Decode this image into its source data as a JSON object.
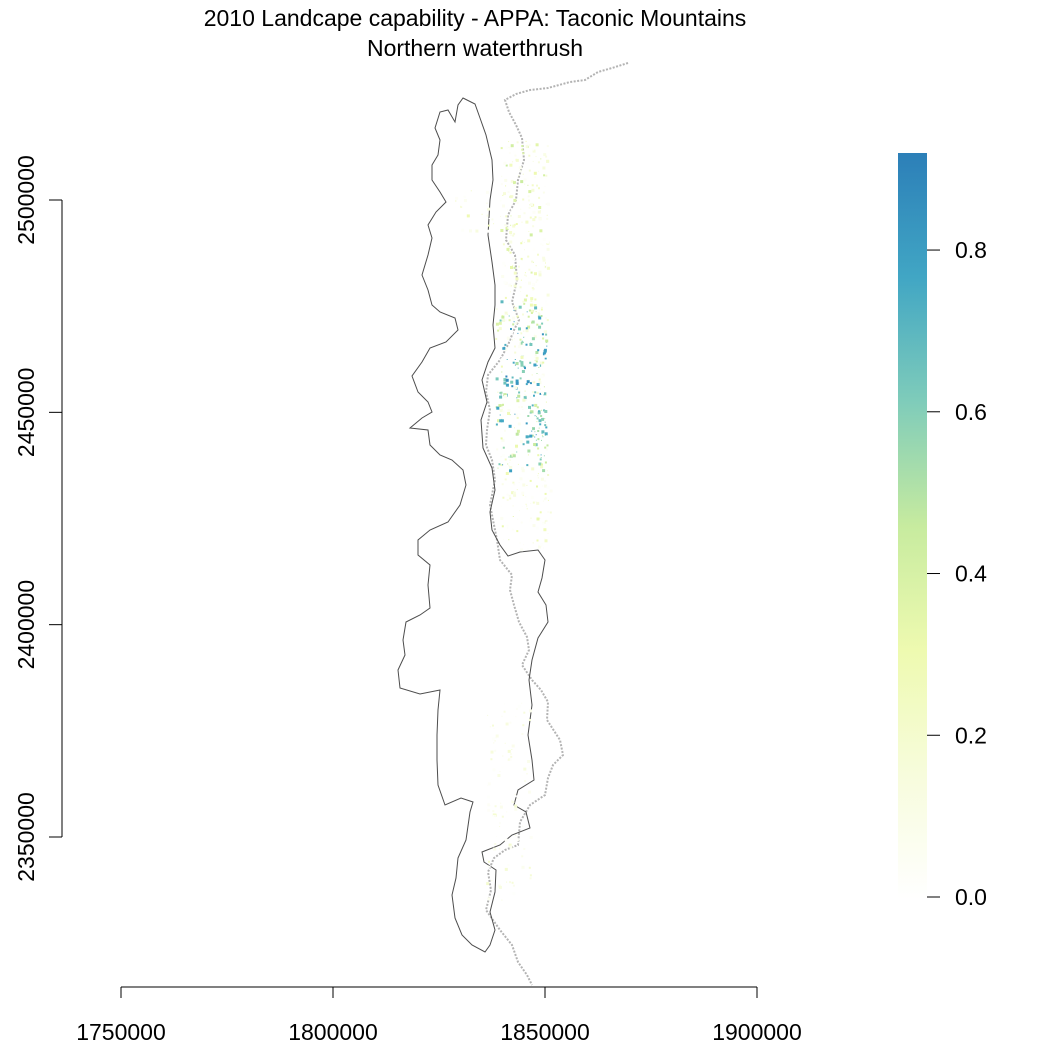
{
  "title": "2010 Landcape capability - APPA: Taconic Mountains",
  "subtitle": "Northern waterthrush",
  "chart_data": {
    "type": "heatmap",
    "x_ticks": [
      1750000,
      1800000,
      1850000,
      1900000
    ],
    "y_ticks": [
      2350000,
      2400000,
      2450000,
      2500000
    ],
    "x_tick_labels": [
      "1750000",
      "1800000",
      "1850000",
      "1900000"
    ],
    "y_tick_labels": [
      "2350000",
      "2400000",
      "2450000",
      "2500000"
    ],
    "xlim": [
      1750000,
      1900000
    ],
    "ylim": [
      2350000,
      2500000
    ],
    "legend": {
      "placement": "right",
      "min": 0.0,
      "max": 0.92,
      "ticks": [
        0.0,
        0.2,
        0.4,
        0.6,
        0.8
      ],
      "tick_labels": [
        "0.0",
        "0.2",
        "0.4",
        "0.6",
        "0.8"
      ],
      "colors": [
        "#ffffff",
        "#f7fcdc",
        "#eefab0",
        "#c7eb9f",
        "#7fccba",
        "#41a6c4",
        "#2c7fb8"
      ]
    },
    "boundaries": {
      "study_area_outline_color": "#555555",
      "state_line_color": "#aaaaaa"
    }
  }
}
